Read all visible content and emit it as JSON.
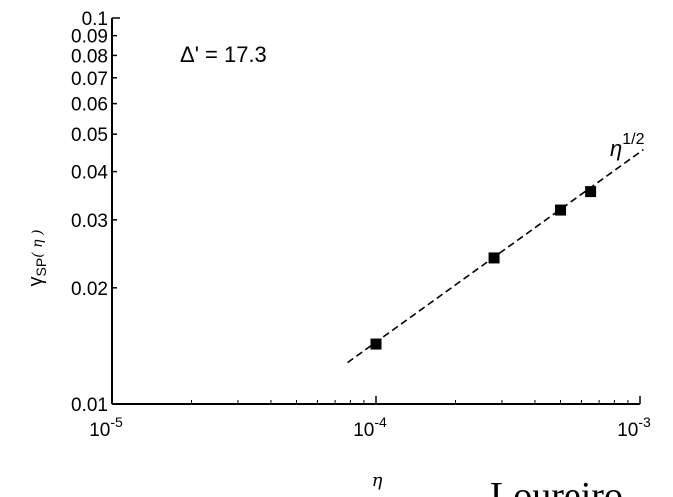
{
  "chart_data": {
    "type": "scatter",
    "xscale": "log",
    "yscale": "log",
    "xlim": [
      1e-05,
      0.001
    ],
    "ylim": [
      0.01,
      0.1
    ],
    "x_ticks": [
      {
        "value": 1e-05,
        "base": "10",
        "exp": "-5"
      },
      {
        "value": 0.0001,
        "base": "10",
        "exp": "-4"
      },
      {
        "value": 0.001,
        "base": "10",
        "exp": "-3"
      }
    ],
    "y_ticks": [
      {
        "value": 0.01,
        "label": "0.01"
      },
      {
        "value": 0.02,
        "label": "0.02"
      },
      {
        "value": 0.03,
        "label": "0.03"
      },
      {
        "value": 0.04,
        "label": "0.04"
      },
      {
        "value": 0.05,
        "label": "0.05"
      },
      {
        "value": 0.06,
        "label": "0.06"
      },
      {
        "value": 0.07,
        "label": "0.07"
      },
      {
        "value": 0.08,
        "label": "0.08"
      },
      {
        "value": 0.09,
        "label": "0.09"
      },
      {
        "value": 0.1,
        "label": "0.1"
      }
    ],
    "xlabel": "η",
    "ylabel": "γSP(η)",
    "ylabel_main": "γ",
    "ylabel_sub": "SP",
    "ylabel_arg": "( η )",
    "points": [
      {
        "x": 0.0001,
        "y": 0.0143
      },
      {
        "x": 0.00028,
        "y": 0.0239
      },
      {
        "x": 0.0005,
        "y": 0.0318
      },
      {
        "x": 0.00065,
        "y": 0.0355
      }
    ],
    "fit_line": {
      "x": [
        7.8e-05,
        0.00103
      ],
      "y": [
        0.0128,
        0.0456
      ],
      "style": "dashed"
    },
    "annotations": {
      "delta": "Δ' = 17.3",
      "slope_base": "η",
      "slope_exp": "1/2"
    },
    "grid": false
  },
  "overlay_text": "Loureiro"
}
